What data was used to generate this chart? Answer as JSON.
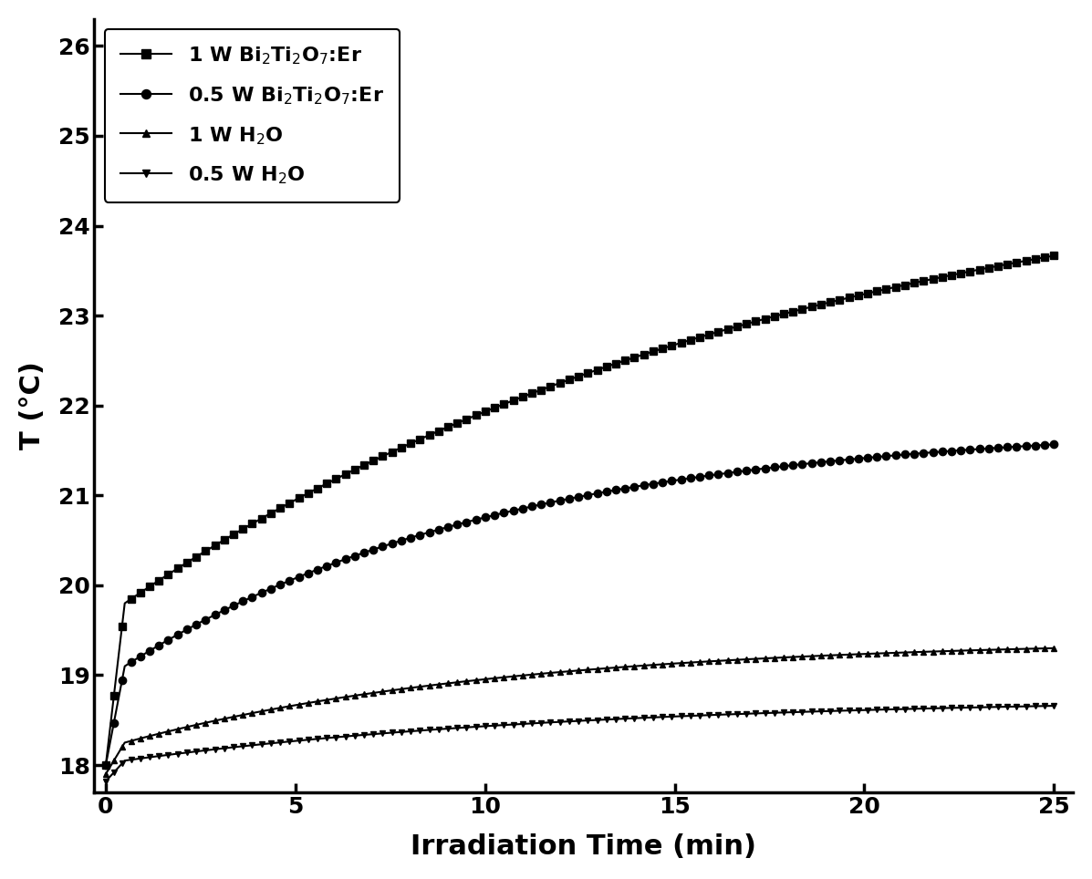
{
  "title": "",
  "xlabel": "Irradiation Time (min)",
  "ylabel": "T (°C)",
  "xlim": [
    -0.3,
    25.5
  ],
  "ylim": [
    17.7,
    26.3
  ],
  "xticks": [
    0,
    5,
    10,
    15,
    20,
    25
  ],
  "yticks": [
    18,
    19,
    20,
    21,
    22,
    23,
    24,
    25,
    26
  ],
  "background_color": "#ffffff",
  "line_color": "#000000",
  "series": [
    {
      "label": "1 W Bi$_2$Ti$_2$O$_7$:Er",
      "marker": "s",
      "x0": 0.0,
      "T0": 18.0,
      "jump_T": 19.8,
      "end_T": 25.0,
      "tau": 18.0,
      "markersize": 6,
      "markevery_dense": 1
    },
    {
      "label": "0.5 W Bi$_2$Ti$_2$O$_7$:Er",
      "marker": "o",
      "x0": 0.0,
      "T0": 18.0,
      "jump_T": 19.1,
      "end_T": 21.8,
      "tau": 10.0,
      "markersize": 6,
      "markevery_dense": 1
    },
    {
      "label": "1 W H$_2$O",
      "marker": "^",
      "x0": 0.0,
      "T0": 17.9,
      "jump_T": 18.25,
      "end_T": 19.4,
      "tau": 10.0,
      "markersize": 5,
      "markevery_dense": 1
    },
    {
      "label": "0.5 W H$_2$O",
      "marker": "v",
      "x0": 0.0,
      "T0": 17.82,
      "jump_T": 18.05,
      "end_T": 18.75,
      "tau": 12.0,
      "markersize": 5,
      "markevery_dense": 1
    }
  ]
}
